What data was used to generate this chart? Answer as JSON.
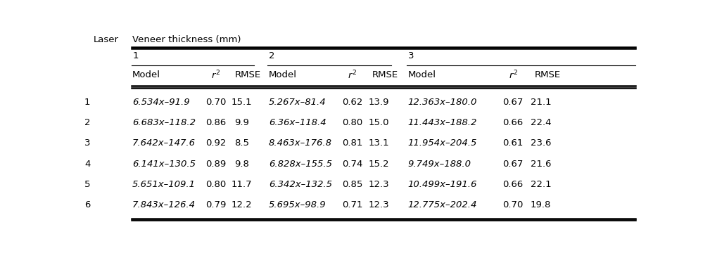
{
  "header_laser": "Laser",
  "header_veneer": "Veneer thickness (mm)",
  "subheader_groups": [
    "1",
    "2",
    "3"
  ],
  "subheader_cols": [
    "Model",
    "r²",
    "RMSE",
    "Model",
    "r²",
    "RMSE",
    "Model",
    "r²",
    "RMSE"
  ],
  "rows": [
    [
      "1",
      "6.534x–91.9",
      "0.70",
      "15.1",
      "5.267x–81.4",
      "0.62",
      "13.9",
      "12.363x–180.0",
      "0.67",
      "21.1"
    ],
    [
      "2",
      "6.683x–118.2",
      "0.86",
      "9.9",
      "6.36x–118.4",
      "0.80",
      "15.0",
      "11.443x–188.2",
      "0.66",
      "22.4"
    ],
    [
      "3",
      "7.642x–147.6",
      "0.92",
      "8.5",
      "8.463x–176.8",
      "0.81",
      "13.1",
      "11.954x–204.5",
      "0.61",
      "23.6"
    ],
    [
      "4",
      "6.141x–130.5",
      "0.89",
      "9.8",
      "6.828x–155.5",
      "0.74",
      "15.2",
      "9.749x–188.0",
      "0.67",
      "21.6"
    ],
    [
      "5",
      "5.651x–109.1",
      "0.80",
      "11.7",
      "6.342x–132.5",
      "0.85",
      "12.3",
      "10.499x–191.6",
      "0.66",
      "22.1"
    ],
    [
      "6",
      "7.843x–126.4",
      "0.79",
      "12.2",
      "5.695x–98.9",
      "0.71",
      "12.3",
      "12.775x–202.4",
      "0.70",
      "19.8"
    ]
  ],
  "background_color": "#ffffff",
  "text_color": "#000000",
  "fontsize": 9.5
}
